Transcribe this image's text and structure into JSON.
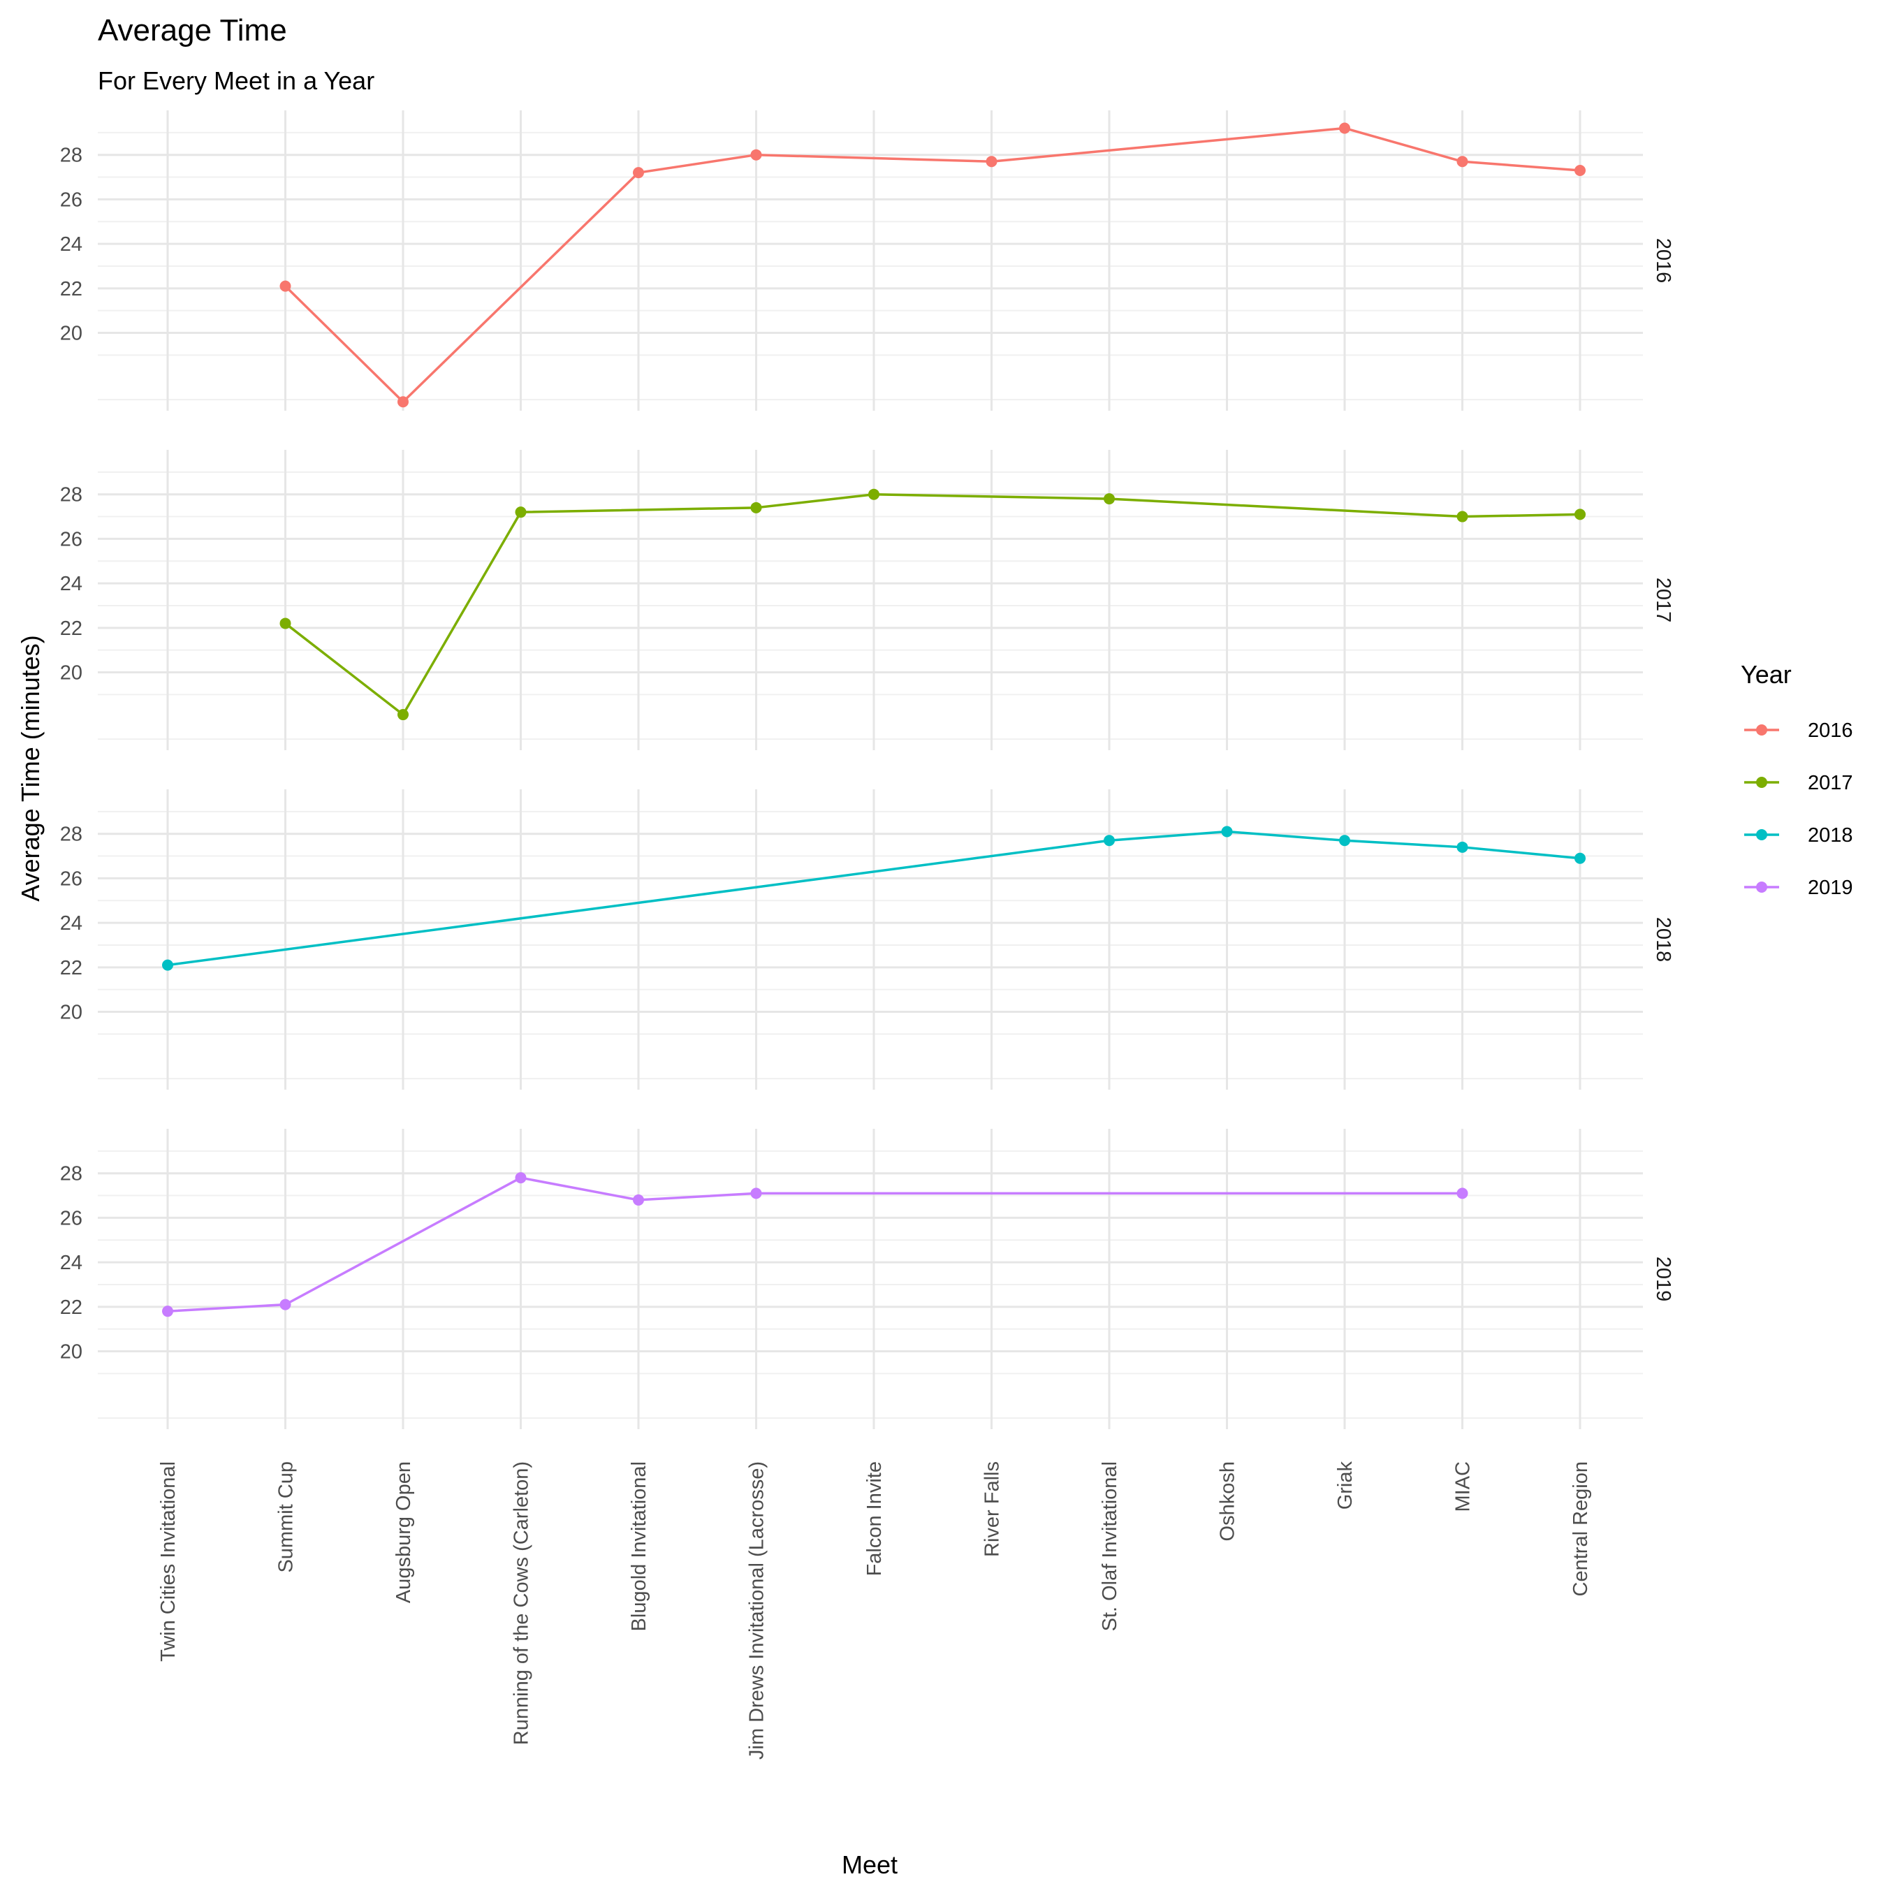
{
  "chart_data": {
    "type": "line",
    "title": "Average Time",
    "subtitle": "For Every Meet in a Year",
    "xlabel": "Meet",
    "ylabel": "Average Time (minutes)",
    "categories": [
      "Twin Cities Invitational",
      "Summit Cup",
      "Augsburg Open",
      "Running of the Cows (Carleton)",
      "Blugold Invitational",
      "Jim Drews Invitational (Lacrosse)",
      "Falcon Invite",
      "River Falls",
      "St. Olaf Invitational",
      "Oshkosh",
      "Griak",
      "MIAC",
      "Central Region"
    ],
    "ylim": [
      16.5,
      30.0
    ],
    "yticks": [
      20,
      22,
      24,
      26,
      28
    ],
    "grid": true,
    "facet": "rows",
    "legend": {
      "title": "Year",
      "position": "right"
    },
    "series": [
      {
        "name": "2016",
        "color": "#F8766D",
        "points": [
          {
            "x": "Summit Cup",
            "y": 22.1
          },
          {
            "x": "Augsburg Open",
            "y": 16.9
          },
          {
            "x": "Blugold Invitational",
            "y": 27.2
          },
          {
            "x": "Jim Drews Invitational (Lacrosse)",
            "y": 28.0
          },
          {
            "x": "River Falls",
            "y": 27.7
          },
          {
            "x": "Griak",
            "y": 29.2
          },
          {
            "x": "MIAC",
            "y": 27.7
          },
          {
            "x": "Central Region",
            "y": 27.3
          }
        ]
      },
      {
        "name": "2017",
        "color": "#7CAE00",
        "points": [
          {
            "x": "Summit Cup",
            "y": 22.2
          },
          {
            "x": "Augsburg Open",
            "y": 18.1
          },
          {
            "x": "Running of the Cows (Carleton)",
            "y": 27.2
          },
          {
            "x": "Jim Drews Invitational (Lacrosse)",
            "y": 27.4
          },
          {
            "x": "Falcon Invite",
            "y": 28.0
          },
          {
            "x": "St. Olaf Invitational",
            "y": 27.8
          },
          {
            "x": "MIAC",
            "y": 27.0
          },
          {
            "x": "Central Region",
            "y": 27.1
          }
        ]
      },
      {
        "name": "2018",
        "color": "#00BFC4",
        "points": [
          {
            "x": "Twin Cities Invitational",
            "y": 22.1
          },
          {
            "x": "St. Olaf Invitational",
            "y": 27.7
          },
          {
            "x": "Oshkosh",
            "y": 28.1
          },
          {
            "x": "Griak",
            "y": 27.7
          },
          {
            "x": "MIAC",
            "y": 27.4
          },
          {
            "x": "Central Region",
            "y": 26.9
          }
        ]
      },
      {
        "name": "2019",
        "color": "#C77CFF",
        "points": [
          {
            "x": "Twin Cities Invitational",
            "y": 21.8
          },
          {
            "x": "Summit Cup",
            "y": 22.1
          },
          {
            "x": "Running of the Cows (Carleton)",
            "y": 27.8
          },
          {
            "x": "Blugold Invitational",
            "y": 26.8
          },
          {
            "x": "Jim Drews Invitational (Lacrosse)",
            "y": 27.1
          },
          {
            "x": "MIAC",
            "y": 27.1
          }
        ]
      }
    ]
  }
}
